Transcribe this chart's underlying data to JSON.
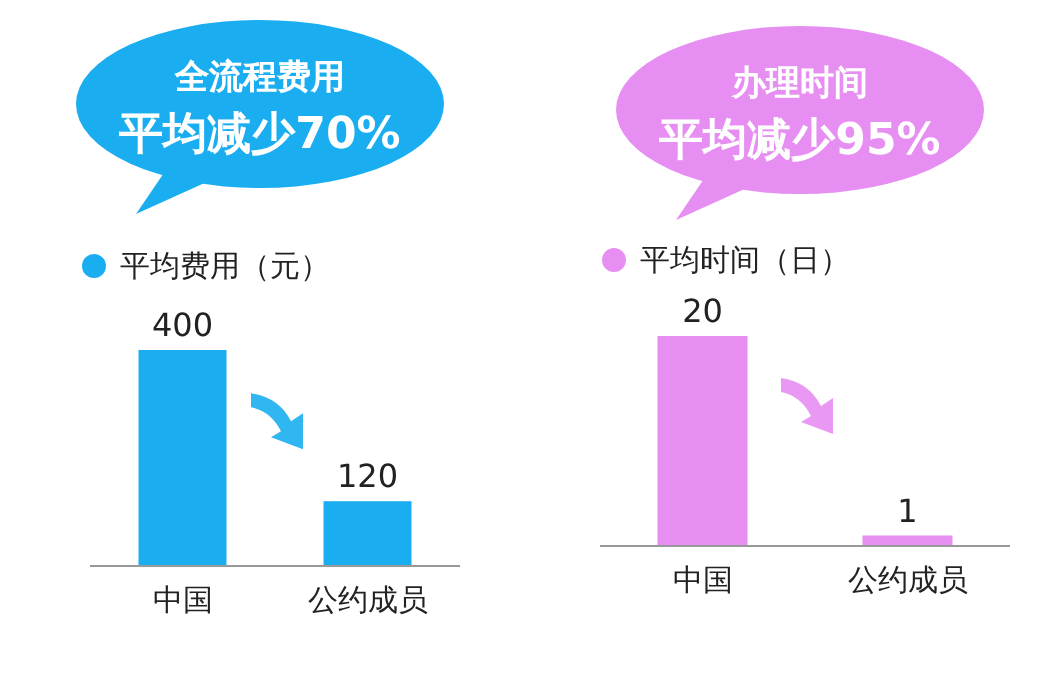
{
  "chart_data": [
    {
      "type": "bar",
      "title": "全流程费用",
      "subtitle": "平均减少70%",
      "categories": [
        "中国",
        "公约成员"
      ],
      "series": [
        {
          "name": "平均费用（元）",
          "color": "#1aaef0",
          "values": [
            400,
            120
          ]
        }
      ],
      "data_labels": true,
      "legend": "top left"
    },
    {
      "type": "bar",
      "title": "办理时间",
      "subtitle": "平均减少95%",
      "categories": [
        "中国",
        "公约成员"
      ],
      "series": [
        {
          "name": "平均时间（日）",
          "color": "#e78ef2",
          "values": [
            20,
            1
          ]
        }
      ],
      "data_labels": true,
      "legend": "top left"
    }
  ]
}
